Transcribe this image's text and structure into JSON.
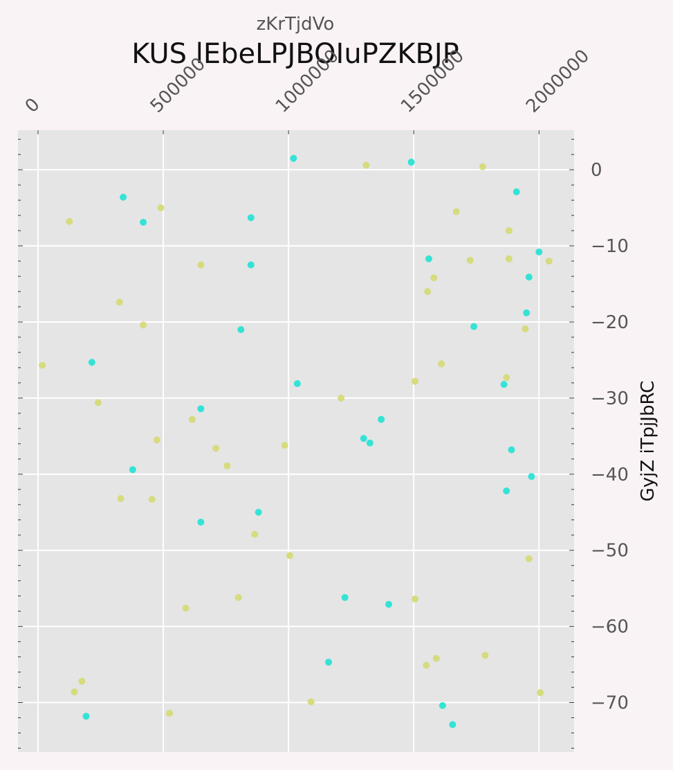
{
  "chart_data": {
    "type": "scatter",
    "title": "KUS lEbeLPJBOIuPZKBJP",
    "xlabel": "zKrTjdVo",
    "ylabel": "GyjZ iTpjJbRC",
    "xlim": [
      -80000,
      2140000
    ],
    "ylim": [
      -76.5,
      5.2
    ],
    "x_ticks": [
      0,
      500000,
      1000000,
      1500000,
      2000000
    ],
    "y_ticks": [
      0,
      -10,
      -20,
      -30,
      -40,
      -50,
      -60,
      -70
    ],
    "x_tick_labels": [
      "0",
      "500000",
      "1000000",
      "1500000",
      "2000000"
    ],
    "y_tick_labels": [
      "0",
      "−10",
      "−20",
      "−30",
      "−40",
      "−50",
      "−60",
      "−70"
    ],
    "grid": true,
    "x_axis_position": "top",
    "y_axis_position": "right",
    "colors": {
      "background": "#f9f3f5",
      "plot_area": "#e5e5e5",
      "grid": "#ffffff",
      "series_cyan": "#35e3d6",
      "series_yellow": "#d6db7e"
    },
    "series": [
      {
        "color": "#35e3d6",
        "points": [
          [
            1020000,
            1.5
          ],
          [
            1490000,
            1.0
          ],
          [
            340000,
            -3.6
          ],
          [
            420000,
            -6.9
          ],
          [
            850000,
            -6.3
          ],
          [
            1910000,
            -2.9
          ],
          [
            1560000,
            -11.7
          ],
          [
            850000,
            -12.5
          ],
          [
            2000000,
            -10.8
          ],
          [
            1960000,
            -14.1
          ],
          [
            1950000,
            -18.8
          ],
          [
            1740000,
            -20.6
          ],
          [
            810000,
            -21.0
          ],
          [
            215000,
            -25.3
          ],
          [
            1035000,
            -28.1
          ],
          [
            1860000,
            -28.2
          ],
          [
            650000,
            -31.4
          ],
          [
            1370000,
            -32.8
          ],
          [
            1300000,
            -35.3
          ],
          [
            1325000,
            -35.9
          ],
          [
            1890000,
            -36.8
          ],
          [
            378000,
            -39.4
          ],
          [
            1970000,
            -40.3
          ],
          [
            1870000,
            -42.2
          ],
          [
            650000,
            -46.3
          ],
          [
            880000,
            -45.0
          ],
          [
            1225000,
            -56.2
          ],
          [
            1400000,
            -57.1
          ],
          [
            1160000,
            -64.7
          ],
          [
            1615000,
            -70.4
          ],
          [
            1655000,
            -72.9
          ],
          [
            192000,
            -71.8
          ]
        ]
      },
      {
        "color": "#d6db7e",
        "points": [
          [
            1310000,
            0.6
          ],
          [
            1775000,
            0.4
          ],
          [
            490000,
            -5.0
          ],
          [
            125000,
            -6.8
          ],
          [
            1670000,
            -5.5
          ],
          [
            1880000,
            -8.0
          ],
          [
            650000,
            -12.5
          ],
          [
            1725000,
            -11.9
          ],
          [
            1880000,
            -11.7
          ],
          [
            2040000,
            -12.0
          ],
          [
            1580000,
            -14.2
          ],
          [
            1555000,
            -16.0
          ],
          [
            325000,
            -17.4
          ],
          [
            420000,
            -20.4
          ],
          [
            1945000,
            -20.9
          ],
          [
            17000,
            -25.7
          ],
          [
            1610000,
            -25.5
          ],
          [
            1505000,
            -27.8
          ],
          [
            1870000,
            -27.3
          ],
          [
            240000,
            -30.6
          ],
          [
            1210000,
            -30.0
          ],
          [
            615000,
            -32.8
          ],
          [
            475000,
            -35.5
          ],
          [
            710000,
            -36.6
          ],
          [
            985000,
            -36.2
          ],
          [
            755000,
            -38.9
          ],
          [
            330000,
            -43.2
          ],
          [
            455000,
            -43.3
          ],
          [
            865000,
            -47.9
          ],
          [
            1005000,
            -50.7
          ],
          [
            1960000,
            -51.1
          ],
          [
            800000,
            -56.2
          ],
          [
            1505000,
            -56.4
          ],
          [
            590000,
            -57.6
          ],
          [
            1590000,
            -64.2
          ],
          [
            1550000,
            -65.1
          ],
          [
            1785000,
            -63.8
          ],
          [
            175000,
            -67.2
          ],
          [
            145000,
            -68.6
          ],
          [
            2005000,
            -68.7
          ],
          [
            1090000,
            -69.9
          ],
          [
            525000,
            -71.4
          ]
        ]
      }
    ]
  }
}
